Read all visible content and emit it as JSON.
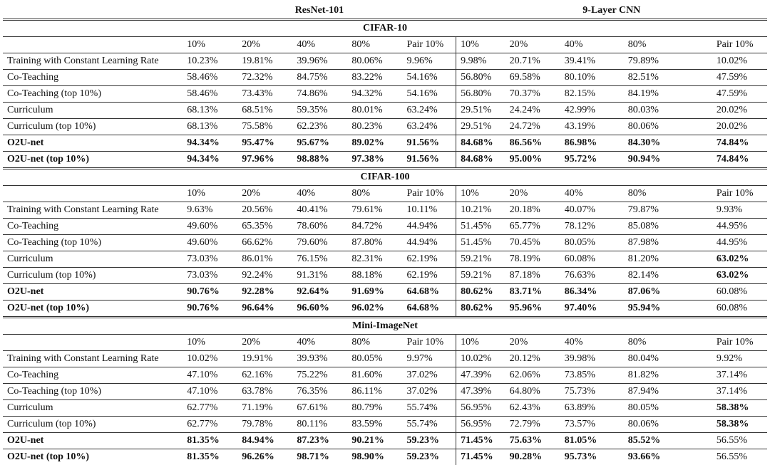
{
  "header": {
    "resnet": "ResNet-101",
    "cnn": "9-Layer CNN"
  },
  "columns": [
    "10%",
    "20%",
    "40%",
    "80%",
    "Pair 10%"
  ],
  "sections": [
    {
      "title": "CIFAR-10",
      "rows": [
        {
          "name": "Training with Constant Learning Rate",
          "bold_name": false,
          "resnet": [
            "10.23%",
            "19.81%",
            "39.96%",
            "80.06%",
            "9.96%"
          ],
          "resnet_bold": [
            false,
            false,
            false,
            false,
            false
          ],
          "cnn": [
            "9.98%",
            "20.71%",
            "39.41%",
            "79.89%",
            "10.02%"
          ],
          "cnn_bold": [
            false,
            false,
            false,
            false,
            false
          ]
        },
        {
          "name": "Co-Teaching",
          "bold_name": false,
          "resnet": [
            "58.46%",
            "72.32%",
            "84.75%",
            "83.22%",
            "54.16%"
          ],
          "resnet_bold": [
            false,
            false,
            false,
            false,
            false
          ],
          "cnn": [
            "56.80%",
            "69.58%",
            "80.10%",
            "82.51%",
            "47.59%"
          ],
          "cnn_bold": [
            false,
            false,
            false,
            false,
            false
          ]
        },
        {
          "name": "Co-Teaching (top 10%)",
          "bold_name": false,
          "resnet": [
            "58.46%",
            "73.43%",
            "74.86%",
            "94.32%",
            "54.16%"
          ],
          "resnet_bold": [
            false,
            false,
            false,
            false,
            false
          ],
          "cnn": [
            "56.80%",
            "70.37%",
            "82.15%",
            "84.19%",
            "47.59%"
          ],
          "cnn_bold": [
            false,
            false,
            false,
            false,
            false
          ]
        },
        {
          "name": "Curriculum",
          "bold_name": false,
          "resnet": [
            "68.13%",
            "68.51%",
            "59.35%",
            "80.01%",
            "63.24%"
          ],
          "resnet_bold": [
            false,
            false,
            false,
            false,
            false
          ],
          "cnn": [
            "29.51%",
            "24.24%",
            "42.99%",
            "80.03%",
            "20.02%"
          ],
          "cnn_bold": [
            false,
            false,
            false,
            false,
            false
          ]
        },
        {
          "name": "Curriculum (top 10%)",
          "bold_name": false,
          "resnet": [
            "68.13%",
            "75.58%",
            "62.23%",
            "80.23%",
            "63.24%"
          ],
          "resnet_bold": [
            false,
            false,
            false,
            false,
            false
          ],
          "cnn": [
            "29.51%",
            "24.72%",
            "43.19%",
            "80.06%",
            "20.02%"
          ],
          "cnn_bold": [
            false,
            false,
            false,
            false,
            false
          ]
        },
        {
          "name": "O2U-net",
          "bold_name": true,
          "resnet": [
            "94.34%",
            "95.47%",
            "95.67%",
            "89.02%",
            "91.56%"
          ],
          "resnet_bold": [
            true,
            true,
            true,
            true,
            true
          ],
          "cnn": [
            "84.68%",
            "86.56%",
            "86.98%",
            "84.30%",
            "74.84%"
          ],
          "cnn_bold": [
            true,
            true,
            true,
            true,
            true
          ]
        },
        {
          "name": "O2U-net (top 10%)",
          "bold_name": true,
          "resnet": [
            "94.34%",
            "97.96%",
            "98.88%",
            "97.38%",
            "91.56%"
          ],
          "resnet_bold": [
            true,
            true,
            true,
            true,
            true
          ],
          "cnn": [
            "84.68%",
            "95.00%",
            "95.72%",
            "90.94%",
            "74.84%"
          ],
          "cnn_bold": [
            true,
            true,
            true,
            true,
            true
          ]
        }
      ]
    },
    {
      "title": "CIFAR-100",
      "rows": [
        {
          "name": "Training with Constant Learning Rate",
          "bold_name": false,
          "resnet": [
            "9.63%",
            "20.56%",
            "40.41%",
            "79.61%",
            "10.11%"
          ],
          "resnet_bold": [
            false,
            false,
            false,
            false,
            false
          ],
          "cnn": [
            "10.21%",
            "20.18%",
            "40.07%",
            "79.87%",
            "9.93%"
          ],
          "cnn_bold": [
            false,
            false,
            false,
            false,
            false
          ]
        },
        {
          "name": "Co-Teaching",
          "bold_name": false,
          "resnet": [
            "49.60%",
            "65.35%",
            "78.60%",
            "84.72%",
            "44.94%"
          ],
          "resnet_bold": [
            false,
            false,
            false,
            false,
            false
          ],
          "cnn": [
            "51.45%",
            "65.77%",
            "78.12%",
            "85.08%",
            "44.95%"
          ],
          "cnn_bold": [
            false,
            false,
            false,
            false,
            false
          ]
        },
        {
          "name": "Co-Teaching (top 10%)",
          "bold_name": false,
          "resnet": [
            "49.60%",
            "66.62%",
            "79.60%",
            "87.80%",
            "44.94%"
          ],
          "resnet_bold": [
            false,
            false,
            false,
            false,
            false
          ],
          "cnn": [
            "51.45%",
            "70.45%",
            "80.05%",
            "87.98%",
            "44.95%"
          ],
          "cnn_bold": [
            false,
            false,
            false,
            false,
            false
          ]
        },
        {
          "name": "Curriculum",
          "bold_name": false,
          "resnet": [
            "73.03%",
            "86.01%",
            "76.15%",
            "82.31%",
            "62.19%"
          ],
          "resnet_bold": [
            false,
            false,
            false,
            false,
            false
          ],
          "cnn": [
            "59.21%",
            "78.19%",
            "60.08%",
            "81.20%",
            "63.02%"
          ],
          "cnn_bold": [
            false,
            false,
            false,
            false,
            true
          ]
        },
        {
          "name": "Curriculum (top 10%)",
          "bold_name": false,
          "resnet": [
            "73.03%",
            "92.24%",
            "91.31%",
            "88.18%",
            "62.19%"
          ],
          "resnet_bold": [
            false,
            false,
            false,
            false,
            false
          ],
          "cnn": [
            "59.21%",
            "87.18%",
            "76.63%",
            "82.14%",
            "63.02%"
          ],
          "cnn_bold": [
            false,
            false,
            false,
            false,
            true
          ]
        },
        {
          "name": "O2U-net",
          "bold_name": true,
          "resnet": [
            "90.76%",
            "92.28%",
            "92.64%",
            "91.69%",
            "64.68%"
          ],
          "resnet_bold": [
            true,
            true,
            true,
            true,
            true
          ],
          "cnn": [
            "80.62%",
            "83.71%",
            "86.34%",
            "87.06%",
            "60.08%"
          ],
          "cnn_bold": [
            true,
            true,
            true,
            true,
            false
          ]
        },
        {
          "name": "O2U-net (top 10%)",
          "bold_name": true,
          "resnet": [
            "90.76%",
            "96.64%",
            "96.60%",
            "96.02%",
            "64.68%"
          ],
          "resnet_bold": [
            true,
            true,
            true,
            true,
            true
          ],
          "cnn": [
            "80.62%",
            "95.96%",
            "97.40%",
            "95.94%",
            "60.08%"
          ],
          "cnn_bold": [
            true,
            true,
            true,
            true,
            false
          ]
        }
      ]
    },
    {
      "title": "Mini-ImageNet",
      "rows": [
        {
          "name": "Training with Constant Learning Rate",
          "bold_name": false,
          "resnet": [
            "10.02%",
            "19.91%",
            "39.93%",
            "80.05%",
            "9.97%"
          ],
          "resnet_bold": [
            false,
            false,
            false,
            false,
            false
          ],
          "cnn": [
            "10.02%",
            "20.12%",
            "39.98%",
            "80.04%",
            "9.92%"
          ],
          "cnn_bold": [
            false,
            false,
            false,
            false,
            false
          ]
        },
        {
          "name": "Co-Teaching",
          "bold_name": false,
          "resnet": [
            "47.10%",
            "62.16%",
            "75.22%",
            "81.60%",
            "37.02%"
          ],
          "resnet_bold": [
            false,
            false,
            false,
            false,
            false
          ],
          "cnn": [
            "47.39%",
            "62.06%",
            "73.85%",
            "81.82%",
            "37.14%"
          ],
          "cnn_bold": [
            false,
            false,
            false,
            false,
            false
          ]
        },
        {
          "name": "Co-Teaching (top 10%)",
          "bold_name": false,
          "resnet": [
            "47.10%",
            "63.78%",
            "76.35%",
            "86.11%",
            "37.02%"
          ],
          "resnet_bold": [
            false,
            false,
            false,
            false,
            false
          ],
          "cnn": [
            "47.39%",
            "64.80%",
            "75.73%",
            "87.94%",
            "37.14%"
          ],
          "cnn_bold": [
            false,
            false,
            false,
            false,
            false
          ]
        },
        {
          "name": "Curriculum",
          "bold_name": false,
          "resnet": [
            "62.77%",
            "71.19%",
            "67.61%",
            "80.79%",
            "55.74%"
          ],
          "resnet_bold": [
            false,
            false,
            false,
            false,
            false
          ],
          "cnn": [
            "56.95%",
            "62.43%",
            "63.89%",
            "80.05%",
            "58.38%"
          ],
          "cnn_bold": [
            false,
            false,
            false,
            false,
            true
          ]
        },
        {
          "name": "Curriculum (top 10%)",
          "bold_name": false,
          "resnet": [
            "62.77%",
            "79.78%",
            "80.11%",
            "83.59%",
            "55.74%"
          ],
          "resnet_bold": [
            false,
            false,
            false,
            false,
            false
          ],
          "cnn": [
            "56.95%",
            "72.79%",
            "73.57%",
            "80.06%",
            "58.38%"
          ],
          "cnn_bold": [
            false,
            false,
            false,
            false,
            true
          ]
        },
        {
          "name": "O2U-net",
          "bold_name": true,
          "resnet": [
            "81.35%",
            "84.94%",
            "87.23%",
            "90.21%",
            "59.23%"
          ],
          "resnet_bold": [
            true,
            true,
            true,
            true,
            true
          ],
          "cnn": [
            "71.45%",
            "75.63%",
            "81.05%",
            "85.52%",
            "56.55%"
          ],
          "cnn_bold": [
            true,
            true,
            true,
            true,
            false
          ]
        },
        {
          "name": "O2U-net (top 10%)",
          "bold_name": true,
          "resnet": [
            "81.35%",
            "96.26%",
            "98.71%",
            "98.90%",
            "59.23%"
          ],
          "resnet_bold": [
            true,
            true,
            true,
            true,
            true
          ],
          "cnn": [
            "71.45%",
            "90.28%",
            "95.73%",
            "93.66%",
            "56.55%"
          ],
          "cnn_bold": [
            true,
            true,
            true,
            true,
            false
          ]
        }
      ]
    }
  ]
}
